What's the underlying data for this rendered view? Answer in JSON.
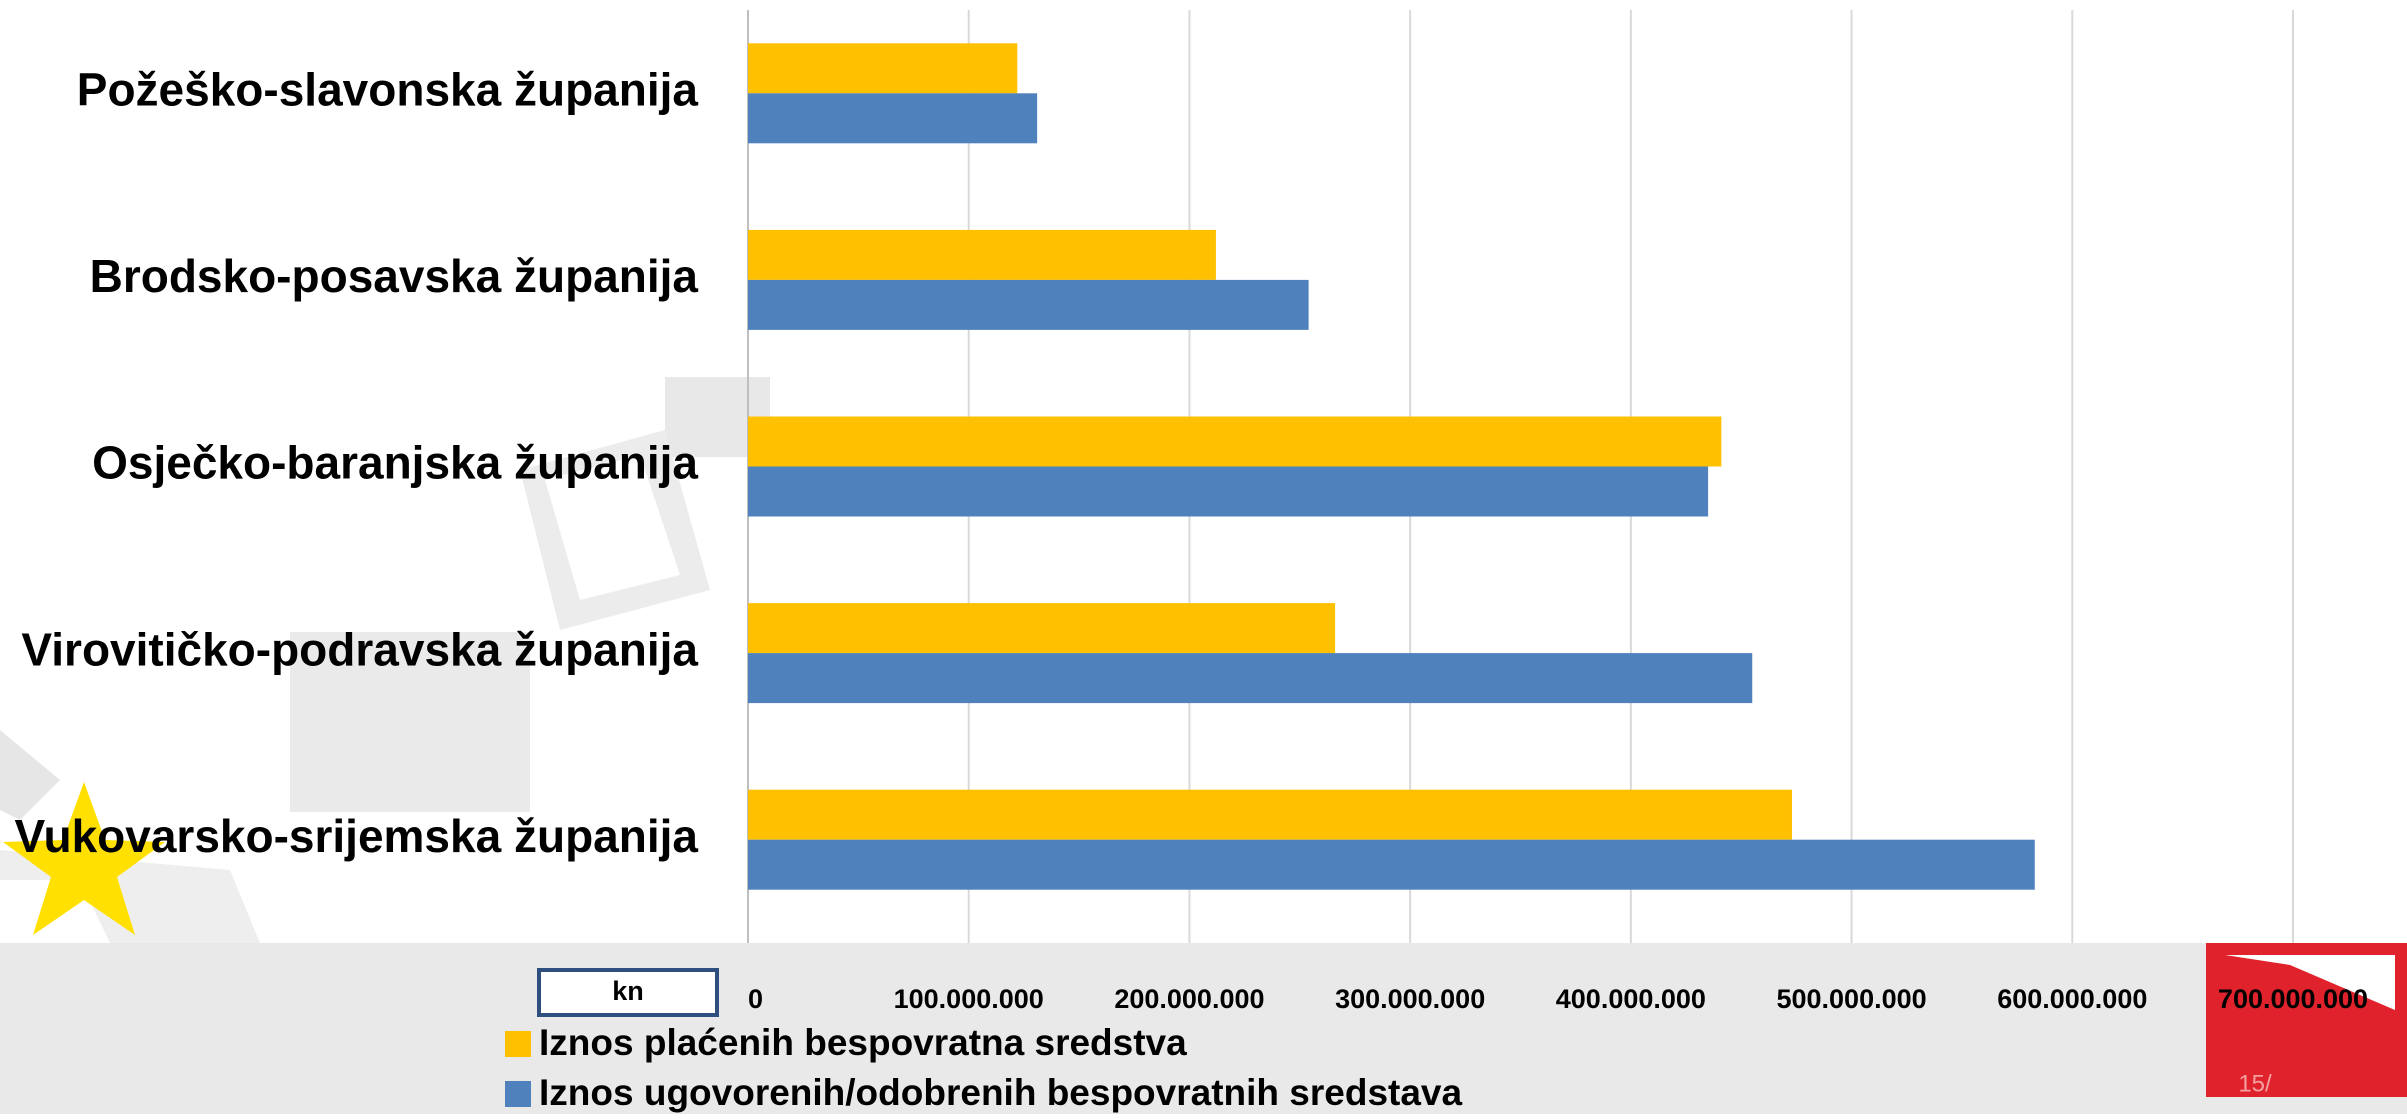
{
  "chart_data": {
    "type": "hbar",
    "categories": [
      "Požeško-slavonska županija",
      "Brodsko-posavska županija",
      "Osječko-baranjska županija",
      "Virovitičko-podravska županija",
      "Vukovarsko-srijemska županija"
    ],
    "series": [
      {
        "name": "Iznos plaćenih bespovratna sredstva",
        "color": "#ffc000",
        "values": [
          122000000,
          212000000,
          441000000,
          266000000,
          473000000
        ]
      },
      {
        "name": "Iznos ugovorenih/odobrenih bespovratnih sredstava",
        "color": "#4f81bd",
        "values": [
          131000000,
          254000000,
          435000000,
          455000000,
          583000000
        ]
      }
    ],
    "xlim": [
      0,
      700000000
    ],
    "xticks": [
      0,
      {
        "value": 100000000,
        "label": "100.000.000"
      },
      {
        "value": 200000000,
        "label": "200.000.000"
      },
      {
        "value": 300000000,
        "label": "300.000.000"
      },
      {
        "value": 400000000,
        "label": "400.000.000"
      },
      {
        "value": 500000000,
        "label": "500.000.000"
      },
      {
        "value": 600000000,
        "label": "600.000.000"
      },
      {
        "value": 700000000,
        "label": "700.000.000"
      }
    ],
    "grid": true,
    "axis_unit": "kn",
    "page_number": "15/"
  }
}
